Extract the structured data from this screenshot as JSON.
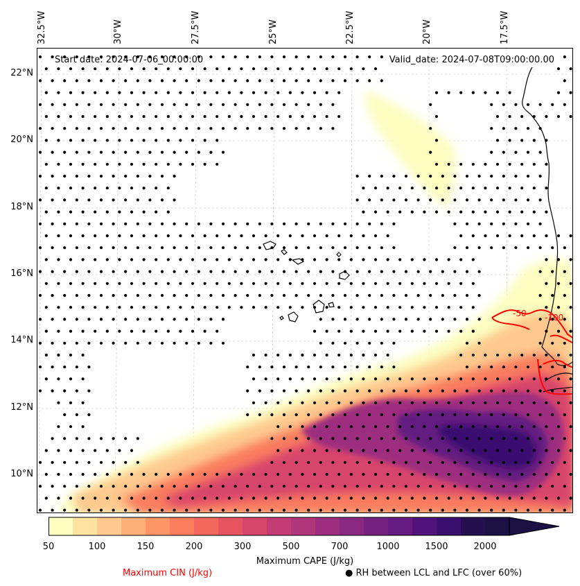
{
  "map": {
    "start_date_label": "Start date: 2024-07-06_00:00:00",
    "valid_date_label": "Valid_date: 2024-07-08T09:00:00.00",
    "lon_labels": [
      "32.5°W",
      "30°W",
      "27.5°W",
      "25°W",
      "22.5°W",
      "20°W",
      "17.5°W"
    ],
    "lat_labels": [
      "22°N",
      "20°N",
      "18°N",
      "16°N",
      "14°N",
      "12°N",
      "10°N"
    ],
    "extent": {
      "lon_min": -33.0,
      "lon_max": -15.0,
      "lat_min": 9.0,
      "lat_max": 22.8
    },
    "grid": "dashed light gray",
    "cin_contour_labels": [
      "-50",
      "-100"
    ],
    "cin_color": "#ff0000",
    "coast_color": "#000000"
  },
  "colorbar": {
    "title": "Maximum CAPE (J/kg)",
    "ticks": [
      "50",
      "100",
      "150",
      "200",
      "300",
      "500",
      "700",
      "1000",
      "1500",
      "2000"
    ],
    "levels": [
      50,
      75,
      100,
      125,
      150,
      175,
      200,
      250,
      300,
      400,
      500,
      600,
      700,
      850,
      1000,
      1250,
      1500,
      1750,
      2000
    ],
    "colors": [
      "#fcfdbf",
      "#fee3a0",
      "#fec98d",
      "#feb078",
      "#fd9567",
      "#fa7d5e",
      "#f3675c",
      "#e85362",
      "#d8456c",
      "#c43c75",
      "#b1357b",
      "#9d2e7f",
      "#8a2981",
      "#76217f",
      "#641a80",
      "#50127b",
      "#3b0f70",
      "#25104f",
      "#1c1044"
    ],
    "extend": "max"
  },
  "legend": {
    "cin_label": "Maximum CIN (J/kg)",
    "cin_color": "#ff0000",
    "rh_marker": "●",
    "rh_label": "RH between LCL and LFC (over 60%)"
  }
}
